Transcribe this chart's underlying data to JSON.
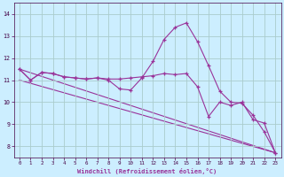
{
  "xlabel": "Windchill (Refroidissement éolien,°C)",
  "bg_color": "#cceeff",
  "grid_color": "#aacccc",
  "line_color": "#993399",
  "xlim": [
    -0.5,
    23.5
  ],
  "ylim": [
    7.5,
    14.5
  ],
  "yticks": [
    8,
    9,
    10,
    11,
    12,
    13,
    14
  ],
  "xticks": [
    0,
    1,
    2,
    3,
    4,
    5,
    6,
    7,
    8,
    9,
    10,
    11,
    12,
    13,
    14,
    15,
    16,
    17,
    18,
    19,
    20,
    21,
    22,
    23
  ],
  "series_peak_x": [
    0,
    1,
    2,
    3,
    4,
    5,
    6,
    7,
    8,
    9,
    10,
    11,
    12,
    13,
    14,
    15,
    16,
    17,
    18,
    19,
    20,
    21,
    22,
    23
  ],
  "series_peak_y": [
    11.5,
    11.0,
    11.35,
    11.3,
    11.15,
    11.1,
    11.05,
    11.1,
    11.0,
    10.6,
    10.55,
    11.1,
    11.85,
    12.85,
    13.4,
    13.6,
    12.75,
    11.65,
    10.5,
    10.0,
    9.95,
    9.4,
    8.65,
    7.7
  ],
  "series_flat_x": [
    0,
    1,
    2,
    3,
    4,
    5,
    6,
    7,
    8,
    9,
    10,
    11,
    12,
    13,
    14,
    15,
    16,
    17,
    18,
    19,
    20,
    21,
    22,
    23
  ],
  "series_flat_y": [
    11.5,
    11.0,
    11.35,
    11.3,
    11.15,
    11.1,
    11.05,
    11.1,
    11.05,
    11.05,
    11.1,
    11.15,
    11.2,
    11.3,
    11.25,
    11.3,
    10.7,
    9.35,
    10.0,
    9.85,
    10.0,
    9.2,
    9.05,
    7.7
  ],
  "line1_x": [
    0,
    23
  ],
  "line1_y": [
    11.5,
    7.7
  ],
  "line2_x": [
    0,
    23
  ],
  "line2_y": [
    11.0,
    7.7
  ]
}
